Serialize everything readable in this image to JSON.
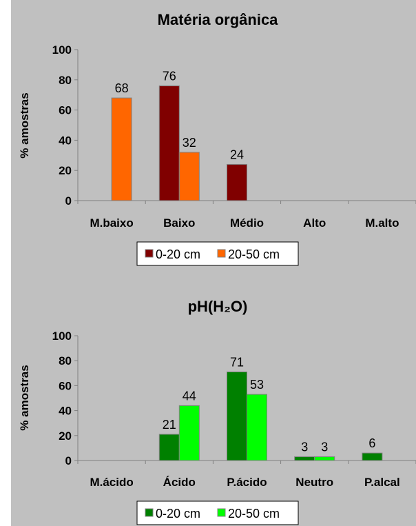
{
  "chart_data": [
    {
      "type": "bar",
      "title": "Matéria orgânica",
      "xlabel": "",
      "ylabel": "% amostras",
      "ylim": [
        0,
        100
      ],
      "yticks": [
        0,
        20,
        40,
        60,
        80,
        100
      ],
      "categories": [
        "M.baixo",
        "Baixo",
        "Médio",
        "Alto",
        "M.alto"
      ],
      "series": [
        {
          "name": "0-20 cm",
          "color": "#800000",
          "values": [
            0,
            76,
            24,
            0,
            0
          ]
        },
        {
          "name": "20-50 cm",
          "color": "#ff6600",
          "values": [
            68,
            32,
            0,
            0,
            0
          ]
        }
      ],
      "legend": "bottom",
      "grid": false
    },
    {
      "type": "bar",
      "title": "pH(H₂O)",
      "xlabel": "",
      "ylabel": "% amostras",
      "ylim": [
        0,
        100
      ],
      "yticks": [
        0,
        20,
        40,
        60,
        80,
        100
      ],
      "categories": [
        "M.ácido",
        "Ácido",
        "P.ácido",
        "Neutro",
        "P.alcal"
      ],
      "series": [
        {
          "name": "0-20 cm",
          "color": "#008000",
          "values": [
            0,
            21,
            71,
            3,
            6
          ]
        },
        {
          "name": "20-50 cm",
          "color": "#00ff00",
          "values": [
            0,
            44,
            53,
            3,
            0
          ]
        }
      ],
      "legend": "bottom",
      "grid": false
    }
  ]
}
